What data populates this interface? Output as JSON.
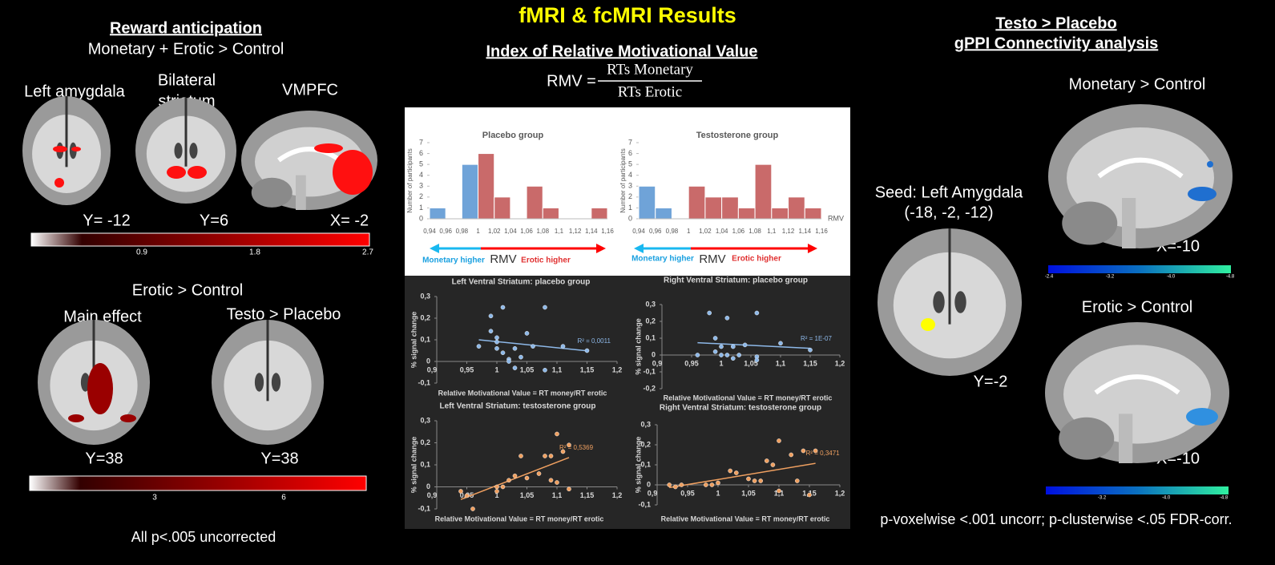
{
  "title": "fMRI & fcMRI Results",
  "left": {
    "heading": "Reward anticipation",
    "contrast": "Monetary + Erotic > Control",
    "region_amygdala": "Left amygdala",
    "region_striatum_1": "Bilateral",
    "region_striatum_2": "striatum",
    "region_vmpfc": "VMPFC",
    "coords_top": [
      "Y= -12",
      "Y=6",
      "X= -2"
    ],
    "colorbar_top": [
      "0.9",
      "1.8",
      "2.7"
    ],
    "contrast_erotic": "Erotic > Control",
    "main_effect": "Main effect",
    "testo_label": "Testo > Placebo",
    "coords_bottom": [
      "Y=38",
      "Y=38"
    ],
    "colorbar_bottom": [
      "3",
      "6"
    ],
    "footnote": "All p<.005 uncorrected"
  },
  "center": {
    "heading": "Index of Relative Motivational Value",
    "formula_lhs": "RMV =",
    "numerator": "RTs Monetary",
    "denominator": "RTs Erotic",
    "arrow_left": "Monetary higher",
    "arrow_mid": "RMV",
    "arrow_right": "Erotic higher"
  },
  "right": {
    "heading": "Testo > Placebo",
    "subheading": "gPPI Connectivity analysis",
    "monetary": "Monetary > Control",
    "seed": "Seed: Left Amygdala",
    "seed_coords": "(-18, -2, -12)",
    "seed_slice": "Y=-2",
    "slice_top": "X=-10",
    "colorbar_top": [
      "-2.4",
      "-3.2",
      "-4.0",
      "-4.8"
    ],
    "erotic": "Erotic > Control",
    "slice_bottom": "X=-10",
    "colorbar_bottom": [
      "-3.2",
      "-4.0",
      "-4.8"
    ],
    "footnote": "p-voxelwise <.001 uncorr; p-clusterwise <.05 FDR-corr."
  },
  "chart_data": [
    {
      "type": "histogram",
      "title": "Placebo group",
      "y_label": "Number of participants",
      "bins": [
        0.94,
        0.96,
        0.98,
        1,
        1.02,
        1.04,
        1.06,
        1.08,
        1.1,
        1.12,
        1.14,
        1.16
      ],
      "counts": [
        1,
        0,
        5,
        6,
        2,
        0,
        3,
        1,
        0,
        0,
        1
      ],
      "colors": [
        "#6fa3d8",
        "#6fa3d8",
        "#6fa3d8",
        "#c96a6a",
        "#c96a6a",
        "#c96a6a",
        "#c96a6a",
        "#c96a6a",
        "#c96a6a",
        "#c96a6a",
        "#c96a6a"
      ],
      "xlim": [
        0.94,
        1.16
      ],
      "xticks": [
        {
          "value": 0.94,
          "label": "0,94"
        },
        {
          "value": 0.96,
          "label": "0,96"
        },
        {
          "value": 0.98,
          "label": "0,98"
        },
        1,
        {
          "value": 1.02,
          "label": "1,02"
        },
        {
          "value": 1.04,
          "label": "1,04"
        },
        {
          "value": 1.06,
          "label": "1,06"
        },
        {
          "value": 1.08,
          "label": "1,08"
        },
        {
          "value": 1.1,
          "label": "1,1"
        },
        {
          "value": 1.12,
          "label": "1,12"
        },
        {
          "value": 1.14,
          "label": "1,14"
        },
        {
          "value": 1.16,
          "label": "1,16"
        }
      ],
      "ylim": [
        0,
        7
      ],
      "yticks": [
        0,
        1,
        2,
        3,
        4,
        5,
        6,
        7
      ]
    },
    {
      "type": "histogram",
      "title": "Testosterone group",
      "y_label": "Number of participants",
      "x_label": "RMV",
      "bins": [
        0.94,
        0.96,
        0.98,
        1,
        1.02,
        1.04,
        1.06,
        1.08,
        1.1,
        1.12,
        1.14,
        1.16
      ],
      "counts": [
        3,
        1,
        0,
        3,
        2,
        2,
        1,
        5,
        1,
        2,
        1
      ],
      "colors": [
        "#6fa3d8",
        "#6fa3d8",
        "#6fa3d8",
        "#c96a6a",
        "#c96a6a",
        "#c96a6a",
        "#c96a6a",
        "#c96a6a",
        "#c96a6a",
        "#c96a6a",
        "#c96a6a"
      ],
      "xlim": [
        0.94,
        1.16
      ],
      "xticks": [
        {
          "value": 0.94,
          "label": "0,94"
        },
        {
          "value": 0.96,
          "label": "0,96"
        },
        {
          "value": 0.98,
          "label": "0,98"
        },
        1,
        {
          "value": 1.02,
          "label": "1,02"
        },
        {
          "value": 1.04,
          "label": "1,04"
        },
        {
          "value": 1.06,
          "label": "1,06"
        },
        {
          "value": 1.08,
          "label": "1,08"
        },
        {
          "value": 1.1,
          "label": "1,1"
        },
        {
          "value": 1.12,
          "label": "1,12"
        },
        {
          "value": 1.14,
          "label": "1,14"
        },
        {
          "value": 1.16,
          "label": "1,16"
        }
      ],
      "ylim": [
        0,
        7
      ],
      "yticks": [
        0,
        1,
        2,
        3,
        4,
        5,
        6,
        7
      ]
    },
    {
      "type": "scatter",
      "title": "Left Ventral Striatum: placebo group",
      "x_label": "Relative Motivational Value = RT money/RT erotic",
      "y_label": "% signal change",
      "annotation": "R² = 0,0011",
      "color": "#8db8e8",
      "x": [
        0.97,
        0.99,
        0.99,
        1.0,
        1.0,
        1.01,
        1.01,
        1.02,
        1.02,
        1.03,
        1.04,
        1.03,
        1.05,
        1.06,
        1.08,
        1.08,
        1.11,
        1.15,
        1.0
      ],
      "y": [
        0.07,
        0.21,
        0.14,
        0.11,
        0.06,
        0.25,
        0.04,
        0.01,
        0.0,
        -0.03,
        0.02,
        0.06,
        0.13,
        0.07,
        0.25,
        -0.04,
        0.07,
        0.05,
        0.09
      ],
      "xlim": [
        0.9,
        1.2
      ],
      "xticks": [
        {
          "value": 0.9,
          "label": "0,9"
        },
        {
          "value": 0.95,
          "label": "0,95"
        },
        1,
        {
          "value": 1.05,
          "label": "1,05"
        },
        {
          "value": 1.1,
          "label": "1,1"
        },
        {
          "value": 1.15,
          "label": "1,15"
        },
        {
          "value": 1.2,
          "label": "1,2"
        }
      ],
      "ylim": [
        -0.1,
        0.3
      ],
      "yticks": [
        {
          "value": -0.1,
          "label": "-0,1"
        },
        0,
        {
          "value": 0.1,
          "label": "0,1"
        },
        {
          "value": 0.2,
          "label": "0,2"
        },
        {
          "value": 0.3,
          "label": "0,3"
        }
      ]
    },
    {
      "type": "scatter",
      "title": "Right Ventral Striatum: placebo group",
      "x_label": "Relative Motivational Value = RT money/RT erotic",
      "y_label": "% signal change",
      "annotation": "R² = 1E-07",
      "color": "#8db8e8",
      "x": [
        0.96,
        0.98,
        0.99,
        1.0,
        1.0,
        1.01,
        1.01,
        1.02,
        1.02,
        1.03,
        1.04,
        1.06,
        1.06,
        1.06,
        1.1,
        1.15,
        0.99
      ],
      "y": [
        0.0,
        0.25,
        0.1,
        0.05,
        0.0,
        0.22,
        0.0,
        -0.02,
        0.05,
        0.0,
        0.06,
        0.25,
        -0.01,
        -0.03,
        0.07,
        0.03,
        0.02
      ],
      "xlim": [
        0.9,
        1.2
      ],
      "xticks": [
        {
          "value": 0.9,
          "label": "0,9"
        },
        {
          "value": 0.95,
          "label": "0,95"
        },
        1,
        {
          "value": 1.05,
          "label": "1,05"
        },
        {
          "value": 1.1,
          "label": "1,1"
        },
        {
          "value": 1.15,
          "label": "1,15"
        },
        {
          "value": 1.2,
          "label": "1,2"
        }
      ],
      "ylim": [
        -0.2,
        0.3
      ],
      "yticks": [
        {
          "value": -0.2,
          "label": "-0,2"
        },
        {
          "value": -0.1,
          "label": "-0,1"
        },
        0,
        {
          "value": 0.1,
          "label": "0,1"
        },
        {
          "value": 0.2,
          "label": "0,2"
        },
        {
          "value": 0.3,
          "label": "0,3"
        }
      ]
    },
    {
      "type": "scatter",
      "title": "Left Ventral Striatum: testosterone group",
      "x_label": "Relative Motivational Value = RT money/RT erotic",
      "y_label": "% signal change",
      "annotation": "R² = 0,5369",
      "color": "#f0a060",
      "x": [
        0.94,
        0.95,
        0.96,
        1.0,
        1.01,
        1.02,
        1.03,
        1.04,
        1.05,
        1.07,
        1.08,
        1.09,
        1.09,
        1.1,
        1.1,
        1.11,
        1.12,
        1.12,
        1.0
      ],
      "y": [
        -0.02,
        -0.04,
        -0.1,
        0.0,
        0.0,
        0.03,
        0.05,
        0.14,
        0.04,
        0.06,
        0.14,
        0.14,
        0.03,
        0.02,
        0.24,
        0.16,
        0.19,
        -0.01,
        -0.02
      ],
      "xlim": [
        0.9,
        1.2
      ],
      "xticks": [
        {
          "value": 0.9,
          "label": "0,9"
        },
        {
          "value": 0.95,
          "label": "0,95"
        },
        1,
        {
          "value": 1.05,
          "label": "1,05"
        },
        {
          "value": 1.1,
          "label": "1,1"
        },
        {
          "value": 1.15,
          "label": "1,15"
        },
        {
          "value": 1.2,
          "label": "1,2"
        }
      ],
      "ylim": [
        -0.1,
        0.3
      ],
      "yticks": [
        {
          "value": -0.1,
          "label": "-0,1"
        },
        0,
        {
          "value": 0.1,
          "label": "0,1"
        },
        {
          "value": 0.2,
          "label": "0,2"
        },
        {
          "value": 0.3,
          "label": "0,3"
        }
      ]
    },
    {
      "type": "scatter",
      "title": "Right Ventral Striatum: testosterone group",
      "x_label": "Relative Motivational Value = RT money/RT erotic",
      "y_label": "% signal change",
      "annotation": "R² = 0,3471",
      "color": "#f0a060",
      "x": [
        0.92,
        0.93,
        0.94,
        0.98,
        0.99,
        1.0,
        1.02,
        1.03,
        1.05,
        1.06,
        1.07,
        1.08,
        1.09,
        1.1,
        1.1,
        1.12,
        1.13,
        1.14,
        1.15,
        1.16
      ],
      "y": [
        0.0,
        -0.01,
        0.0,
        0.0,
        0.0,
        0.01,
        0.07,
        0.06,
        0.03,
        0.02,
        0.02,
        0.12,
        0.1,
        0.22,
        -0.03,
        0.15,
        0.02,
        0.17,
        -0.05,
        0.17
      ],
      "xlim": [
        0.9,
        1.2
      ],
      "xticks": [
        {
          "value": 0.9,
          "label": "0,9"
        },
        {
          "value": 0.95,
          "label": "0,95"
        },
        1,
        {
          "value": 1.05,
          "label": "1,05"
        },
        {
          "value": 1.1,
          "label": "1,1"
        },
        {
          "value": 1.15,
          "label": "1,15"
        },
        {
          "value": 1.2,
          "label": "1,2"
        }
      ],
      "ylim": [
        -0.1,
        0.3
      ],
      "yticks": [
        {
          "value": -0.1,
          "label": "-0,1"
        },
        0,
        {
          "value": 0.1,
          "label": "0,1"
        },
        {
          "value": 0.2,
          "label": "0,2"
        },
        {
          "value": 0.3,
          "label": "0,3"
        }
      ]
    }
  ]
}
